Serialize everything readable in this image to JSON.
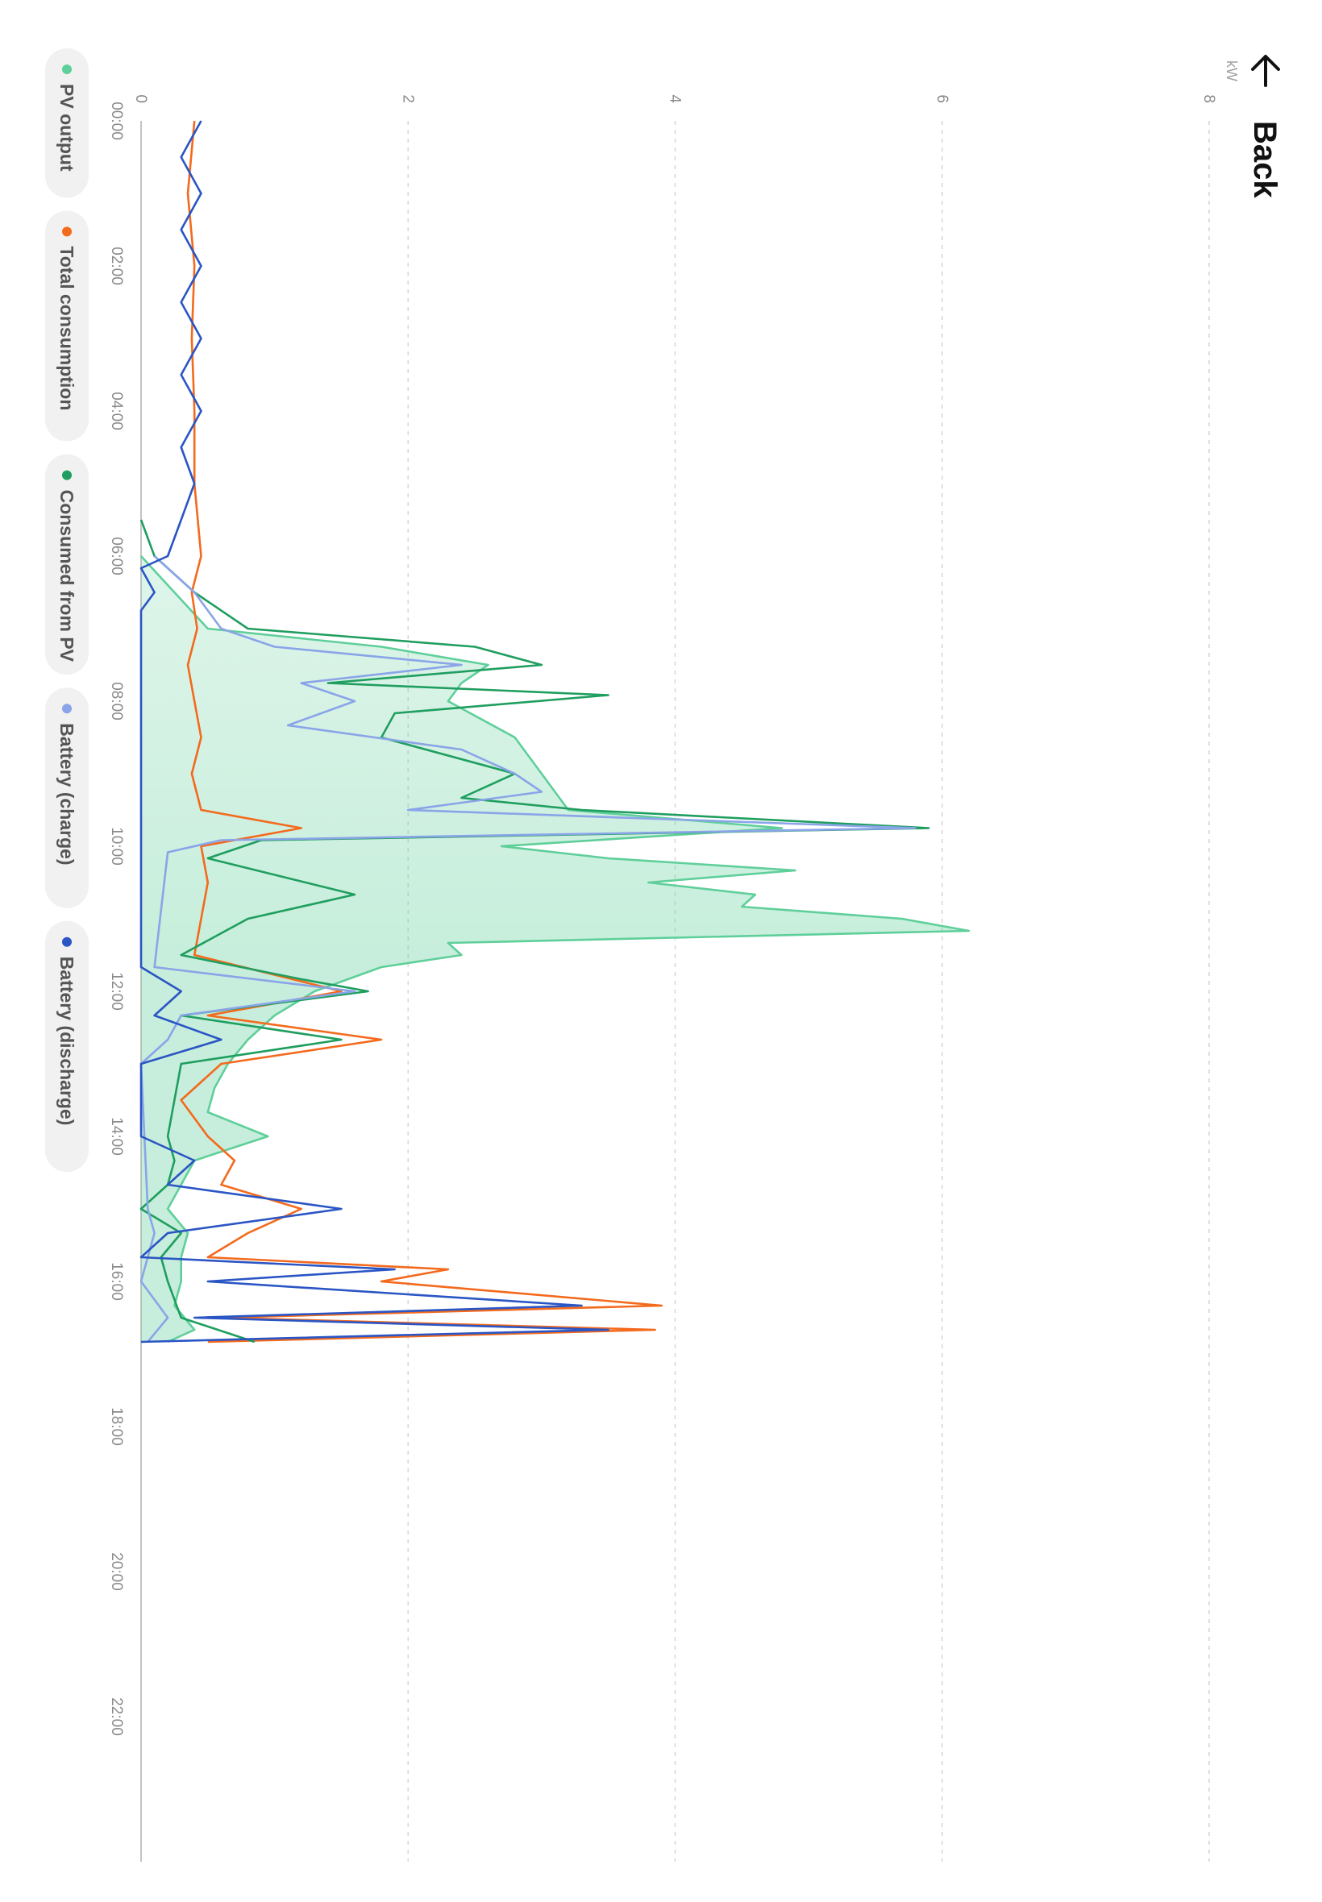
{
  "header": {
    "back_label": "Back",
    "back_icon": "arrow-left-icon"
  },
  "chart_data": {
    "type": "line",
    "title": "",
    "xlabel": "",
    "ylabel": "kW",
    "xlim": [
      "00:00",
      "24:00"
    ],
    "ylim": [
      0,
      8
    ],
    "grid": true,
    "legend_placement": "bottom",
    "x_ticks": [
      "00:00",
      "02:00",
      "04:00",
      "06:00",
      "08:00",
      "10:00",
      "12:00",
      "14:00",
      "16:00",
      "18:00",
      "20:00",
      "22:00"
    ],
    "y_ticks": [
      "0",
      "2",
      "4",
      "6",
      "8"
    ],
    "series": [
      {
        "name": "PV output",
        "color": "#5fcf9a",
        "fill": true,
        "points": [
          [
            "06:00",
            0.0
          ],
          [
            "06:30",
            0.25
          ],
          [
            "07:00",
            0.5
          ],
          [
            "07:15",
            1.8
          ],
          [
            "07:30",
            2.6
          ],
          [
            "07:45",
            2.4
          ],
          [
            "08:00",
            2.3
          ],
          [
            "08:30",
            2.8
          ],
          [
            "09:00",
            3.0
          ],
          [
            "09:30",
            3.2
          ],
          [
            "09:45",
            4.8
          ],
          [
            "10:00",
            2.7
          ],
          [
            "10:10",
            3.5
          ],
          [
            "10:20",
            4.9
          ],
          [
            "10:30",
            3.8
          ],
          [
            "10:40",
            4.6
          ],
          [
            "10:50",
            4.5
          ],
          [
            "11:00",
            5.7
          ],
          [
            "11:10",
            6.2
          ],
          [
            "11:20",
            2.3
          ],
          [
            "11:30",
            2.4
          ],
          [
            "11:40",
            1.8
          ],
          [
            "12:00",
            1.3
          ],
          [
            "12:20",
            1.0
          ],
          [
            "12:40",
            0.8
          ],
          [
            "13:00",
            0.65
          ],
          [
            "13:20",
            0.55
          ],
          [
            "13:40",
            0.5
          ],
          [
            "14:00",
            0.95
          ],
          [
            "14:20",
            0.4
          ],
          [
            "14:40",
            0.3
          ],
          [
            "15:00",
            0.2
          ],
          [
            "15:20",
            0.35
          ],
          [
            "15:40",
            0.3
          ],
          [
            "16:00",
            0.3
          ],
          [
            "16:20",
            0.25
          ],
          [
            "16:40",
            0.4
          ],
          [
            "16:50",
            0.2
          ]
        ]
      },
      {
        "name": "Total consumption",
        "color": "#f36a1d",
        "fill": false,
        "points": [
          [
            "00:00",
            0.4
          ],
          [
            "01:00",
            0.35
          ],
          [
            "02:00",
            0.4
          ],
          [
            "03:00",
            0.38
          ],
          [
            "04:00",
            0.4
          ],
          [
            "05:00",
            0.4
          ],
          [
            "06:00",
            0.45
          ],
          [
            "06:30",
            0.38
          ],
          [
            "07:00",
            0.42
          ],
          [
            "07:30",
            0.35
          ],
          [
            "08:00",
            0.4
          ],
          [
            "08:30",
            0.45
          ],
          [
            "09:00",
            0.38
          ],
          [
            "09:30",
            0.45
          ],
          [
            "09:45",
            1.2
          ],
          [
            "10:00",
            0.45
          ],
          [
            "10:30",
            0.5
          ],
          [
            "11:00",
            0.45
          ],
          [
            "11:30",
            0.4
          ],
          [
            "12:00",
            1.5
          ],
          [
            "12:20",
            0.5
          ],
          [
            "12:40",
            1.8
          ],
          [
            "13:00",
            0.6
          ],
          [
            "13:30",
            0.3
          ],
          [
            "14:00",
            0.5
          ],
          [
            "14:20",
            0.7
          ],
          [
            "14:40",
            0.6
          ],
          [
            "15:00",
            1.2
          ],
          [
            "15:20",
            0.8
          ],
          [
            "15:40",
            0.5
          ],
          [
            "15:50",
            2.3
          ],
          [
            "16:00",
            1.8
          ],
          [
            "16:20",
            3.9
          ],
          [
            "16:30",
            0.6
          ],
          [
            "16:40",
            3.85
          ],
          [
            "16:50",
            0.5
          ]
        ]
      },
      {
        "name": "Consumed from PV",
        "color": "#1f9e5f",
        "fill": false,
        "points": [
          [
            "05:30",
            0.0
          ],
          [
            "06:00",
            0.1
          ],
          [
            "06:30",
            0.4
          ],
          [
            "07:00",
            0.8
          ],
          [
            "07:15",
            2.5
          ],
          [
            "07:30",
            3.0
          ],
          [
            "07:45",
            1.4
          ],
          [
            "07:55",
            3.5
          ],
          [
            "08:10",
            1.9
          ],
          [
            "08:30",
            1.8
          ],
          [
            "09:00",
            2.8
          ],
          [
            "09:20",
            2.4
          ],
          [
            "09:30",
            3.3
          ],
          [
            "09:45",
            5.9
          ],
          [
            "09:55",
            0.9
          ],
          [
            "10:10",
            0.5
          ],
          [
            "10:40",
            1.6
          ],
          [
            "11:00",
            0.8
          ],
          [
            "11:30",
            0.3
          ],
          [
            "11:50",
            1.2
          ],
          [
            "12:00",
            1.7
          ],
          [
            "12:20",
            0.3
          ],
          [
            "12:40",
            1.5
          ],
          [
            "13:00",
            0.3
          ],
          [
            "13:30",
            0.25
          ],
          [
            "14:00",
            0.2
          ],
          [
            "14:20",
            0.25
          ],
          [
            "14:40",
            0.2
          ],
          [
            "15:00",
            0.0
          ],
          [
            "15:20",
            0.3
          ],
          [
            "15:40",
            0.15
          ],
          [
            "16:00",
            0.2
          ],
          [
            "16:30",
            0.3
          ],
          [
            "16:50",
            0.85
          ]
        ]
      },
      {
        "name": "Battery (charge)",
        "color": "#8aa4e8",
        "fill": false,
        "points": [
          [
            "06:00",
            0.1
          ],
          [
            "06:30",
            0.4
          ],
          [
            "07:00",
            0.6
          ],
          [
            "07:15",
            1.0
          ],
          [
            "07:30",
            2.4
          ],
          [
            "07:45",
            1.2
          ],
          [
            "08:00",
            1.6
          ],
          [
            "08:20",
            1.1
          ],
          [
            "08:40",
            2.4
          ],
          [
            "09:00",
            2.8
          ],
          [
            "09:15",
            3.0
          ],
          [
            "09:30",
            2.0
          ],
          [
            "09:45",
            5.8
          ],
          [
            "09:55",
            0.6
          ],
          [
            "10:05",
            0.2
          ],
          [
            "11:40",
            0.1
          ],
          [
            "12:00",
            1.6
          ],
          [
            "12:20",
            0.3
          ],
          [
            "12:40",
            0.2
          ],
          [
            "13:00",
            0.0
          ],
          [
            "15:00",
            0.05
          ],
          [
            "15:20",
            0.1
          ],
          [
            "16:00",
            0.0
          ],
          [
            "16:30",
            0.2
          ],
          [
            "16:50",
            0.05
          ]
        ]
      },
      {
        "name": "Battery (discharge)",
        "color": "#2a55c4",
        "fill": false,
        "points": [
          [
            "00:00",
            0.45
          ],
          [
            "00:30",
            0.3
          ],
          [
            "01:00",
            0.45
          ],
          [
            "01:30",
            0.3
          ],
          [
            "02:00",
            0.45
          ],
          [
            "02:30",
            0.3
          ],
          [
            "03:00",
            0.45
          ],
          [
            "03:30",
            0.3
          ],
          [
            "04:00",
            0.45
          ],
          [
            "04:30",
            0.3
          ],
          [
            "05:00",
            0.4
          ],
          [
            "05:30",
            0.3
          ],
          [
            "06:00",
            0.2
          ],
          [
            "06:10",
            0.0
          ],
          [
            "06:30",
            0.1
          ],
          [
            "06:45",
            0.0
          ],
          [
            "11:40",
            0.0
          ],
          [
            "12:00",
            0.3
          ],
          [
            "12:20",
            0.1
          ],
          [
            "12:40",
            0.6
          ],
          [
            "13:00",
            0.0
          ],
          [
            "14:00",
            0.0
          ],
          [
            "14:20",
            0.4
          ],
          [
            "14:40",
            0.2
          ],
          [
            "15:00",
            1.5
          ],
          [
            "15:20",
            0.2
          ],
          [
            "15:40",
            0.0
          ],
          [
            "15:50",
            1.9
          ],
          [
            "16:00",
            0.5
          ],
          [
            "16:20",
            3.3
          ],
          [
            "16:30",
            0.4
          ],
          [
            "16:40",
            3.5
          ],
          [
            "16:50",
            0.0
          ]
        ]
      }
    ]
  }
}
